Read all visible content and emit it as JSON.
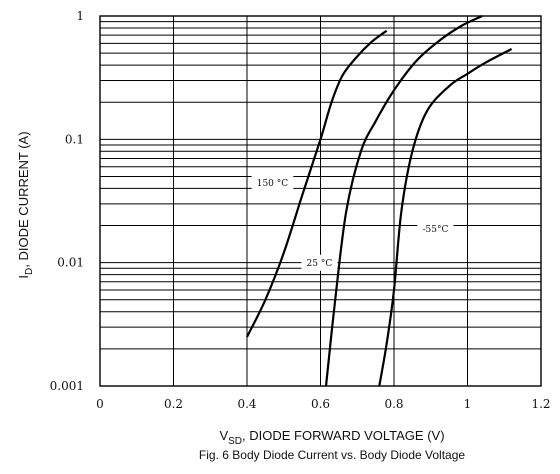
{
  "chart_data": {
    "type": "line",
    "caption": "Fig. 6  Body Diode Current vs. Body Diode Voltage",
    "xlabel_main": "V",
    "xlabel_sub": "SD",
    "xlabel_rest": ", DIODE FORWARD VOLTAGE (V)",
    "ylabel_main": "I",
    "ylabel_sub": "D",
    "ylabel_rest": ", DIODE CURRENT (A)",
    "x_ticks": [
      "0",
      "0.2",
      "0.4",
      "0.6",
      "0.8",
      "1",
      "1.2"
    ],
    "x_tick_values": [
      0,
      0.2,
      0.4,
      0.6,
      0.8,
      1.0,
      1.2
    ],
    "y_ticks": [
      "1",
      "0.1",
      "0.01",
      "0.001"
    ],
    "y_tick_values": [
      1,
      0.1,
      0.01,
      0.001
    ],
    "xlim": [
      0,
      1.2
    ],
    "ylim": [
      0.001,
      1
    ],
    "y_scale": "log",
    "grid": true,
    "series": [
      {
        "name": "150 °C",
        "x": [
          0.4,
          0.45,
          0.5,
          0.55,
          0.6,
          0.63,
          0.66,
          0.7,
          0.74,
          0.78
        ],
        "y": [
          0.0025,
          0.005,
          0.012,
          0.035,
          0.1,
          0.2,
          0.33,
          0.47,
          0.62,
          0.76
        ]
      },
      {
        "name": "25 °C",
        "x": [
          0.615,
          0.64,
          0.67,
          0.71,
          0.75,
          0.8,
          0.86,
          0.92,
          0.98,
          1.04
        ],
        "y": [
          0.001,
          0.005,
          0.026,
          0.08,
          0.14,
          0.25,
          0.43,
          0.62,
          0.82,
          1.0
        ]
      },
      {
        "name": "-55°C",
        "x": [
          0.76,
          0.78,
          0.8,
          0.82,
          0.85,
          0.89,
          0.95,
          1.0,
          1.05,
          1.12
        ],
        "y": [
          0.001,
          0.0022,
          0.006,
          0.026,
          0.08,
          0.17,
          0.27,
          0.34,
          0.42,
          0.54
        ]
      }
    ]
  }
}
